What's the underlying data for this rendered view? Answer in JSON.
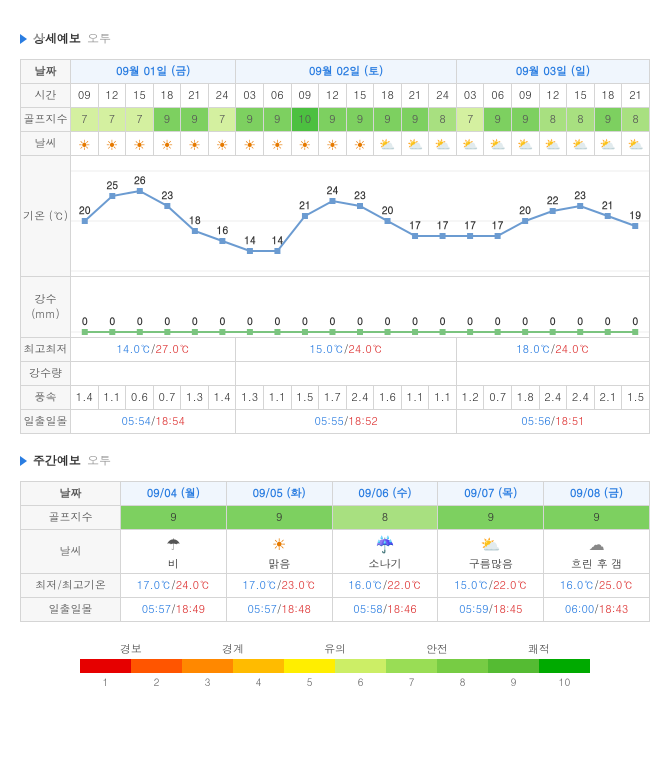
{
  "section1": {
    "title": "상세예보",
    "sub": "오투"
  },
  "section2": {
    "title": "주간예보",
    "sub": "오투"
  },
  "detail": {
    "headers": {
      "date": "날짜",
      "time": "시간",
      "golf": "골프지수",
      "weather": "날씨",
      "hilo": "최고최저",
      "precip": "강수량",
      "wind": "풍속",
      "sun": "일출일몰",
      "temp": "기온 (℃)",
      "rain": "강수 (mm)"
    },
    "dates": [
      {
        "label": "09월 01일 (금)",
        "span": 6
      },
      {
        "label": "09월 02일 (토)",
        "span": 8
      },
      {
        "label": "09월 03일 (일)",
        "span": 7
      }
    ],
    "times": [
      "09",
      "12",
      "15",
      "18",
      "21",
      "24",
      "03",
      "06",
      "09",
      "12",
      "15",
      "18",
      "21",
      "24",
      "03",
      "06",
      "09",
      "12",
      "15",
      "18",
      "21"
    ],
    "golf": [
      7,
      7,
      7,
      9,
      9,
      7,
      9,
      9,
      10,
      9,
      9,
      9,
      9,
      8,
      7,
      9,
      9,
      8,
      8,
      9,
      8
    ],
    "weather": [
      "sun",
      "sun",
      "sun",
      "sun",
      "sun",
      "sun",
      "sun",
      "sun",
      "sun",
      "sun",
      "sun",
      "pc",
      "pc",
      "pc",
      "pc",
      "pc",
      "pc",
      "pc",
      "pc",
      "pc",
      "pc"
    ],
    "temp": [
      20,
      25,
      26,
      23,
      18,
      16,
      14,
      14,
      21,
      24,
      23,
      20,
      17,
      17,
      17,
      17,
      20,
      22,
      23,
      21,
      19
    ],
    "precip": [
      0,
      0,
      0,
      0,
      0,
      0,
      0,
      0,
      0,
      0,
      0,
      0,
      0,
      0,
      0,
      0,
      0,
      0,
      0,
      0,
      0
    ],
    "hilo": [
      {
        "lo": "14.0℃",
        "hi": "27.0℃",
        "span": 6
      },
      {
        "lo": "15.0℃",
        "hi": "24.0℃",
        "span": 8
      },
      {
        "lo": "18.0℃",
        "hi": "24.0℃",
        "span": 7
      }
    ],
    "precipDaily": [
      {
        "val": "",
        "span": 6
      },
      {
        "val": "",
        "span": 8
      },
      {
        "val": "",
        "span": 7
      }
    ],
    "wind": [
      "1.4",
      "1.1",
      "0.6",
      "0.7",
      "1.3",
      "1.4",
      "1.3",
      "1.1",
      "1.5",
      "1.7",
      "2.4",
      "1.6",
      "1.1",
      "1.1",
      "1.2",
      "0.7",
      "1.8",
      "2.4",
      "2.4",
      "2.1",
      "1.5"
    ],
    "sunrise": [
      {
        "sr": "05:54",
        "ss": "18:54",
        "span": 6
      },
      {
        "sr": "05:55",
        "ss": "18:52",
        "span": 8
      },
      {
        "sr": "05:56",
        "ss": "18:51",
        "span": 7
      }
    ],
    "chart": {
      "temp": {
        "ymin": 10,
        "ymax": 30,
        "yticks": [
          10,
          20,
          30
        ],
        "line_color": "#6b9bd1",
        "marker_color": "#6b9bd1",
        "label_fontsize": 10
      },
      "precip": {
        "ymin": 0,
        "ymax": 10,
        "yticks": [
          0
        ],
        "line_color": "#7bc47f",
        "marker_color": "#7bc47f"
      }
    }
  },
  "weekly": {
    "headers": {
      "date": "날짜",
      "golf": "골프지수",
      "weather": "날씨",
      "hilo": "최저/최고기온",
      "sun": "일출일몰"
    },
    "days": [
      {
        "date": "09/04 (월)",
        "golf": 9,
        "wicon": "rain",
        "wlabel": "비",
        "lo": "17.0℃",
        "hi": "24.0℃",
        "sr": "05:57",
        "ss": "18:49"
      },
      {
        "date": "09/05 (화)",
        "golf": 9,
        "wicon": "sun",
        "wlabel": "맑음",
        "lo": "17.0℃",
        "hi": "23.0℃",
        "sr": "05:57",
        "ss": "18:48"
      },
      {
        "date": "09/06 (수)",
        "golf": 8,
        "wicon": "shower",
        "wlabel": "소나기",
        "lo": "16.0℃",
        "hi": "22.0℃",
        "sr": "05:58",
        "ss": "18:46"
      },
      {
        "date": "09/07 (목)",
        "golf": 9,
        "wicon": "cloudy",
        "wlabel": "구름많음",
        "lo": "15.0℃",
        "hi": "22.0℃",
        "sr": "05:59",
        "ss": "18:45"
      },
      {
        "date": "09/08 (금)",
        "golf": 9,
        "wicon": "overcast",
        "wlabel": "흐린 후 갬",
        "lo": "16.0℃",
        "hi": "25.0℃",
        "sr": "06:00",
        "ss": "18:43"
      }
    ]
  },
  "legend": {
    "labels": [
      "경보",
      "경계",
      "유의",
      "안전",
      "쾌적"
    ],
    "colors": [
      "#e60000",
      "#ff5500",
      "#ff8800",
      "#ffbb00",
      "#ffee00",
      "#ccee66",
      "#99dd55",
      "#77cc44",
      "#55bb33",
      "#00aa00"
    ],
    "nums": [
      "1",
      "2",
      "3",
      "4",
      "5",
      "6",
      "7",
      "8",
      "9",
      "10"
    ]
  },
  "golf_colors": {
    "7": "#d4f0a0",
    "8": "#a8e080",
    "9": "#7dd060",
    "10": "#4cc040"
  },
  "wicons": {
    "sun": "☀",
    "pc": "⛅",
    "rain": "☂",
    "shower": "☔",
    "cloudy": "⛅",
    "overcast": "☁"
  }
}
